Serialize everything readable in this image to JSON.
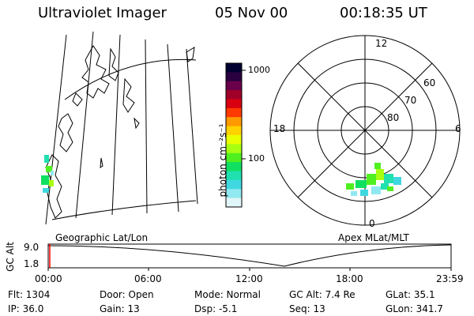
{
  "header": {
    "instrument": "Ultraviolet Imager",
    "date": "05 Nov 00",
    "time": "00:18:35 UT"
  },
  "colorbar": {
    "unit_label": "photon cm⁻²s⁻¹",
    "ticks": [
      "1000",
      "100"
    ],
    "colors": [
      "#000030",
      "#2a0040",
      "#6a004a",
      "#a00028",
      "#d80010",
      "#ff3a00",
      "#ff9a00",
      "#ffd200",
      "#e8ff00",
      "#a8ff10",
      "#50f020",
      "#10e060",
      "#20e0b0",
      "#40d8e0",
      "#90e8f0",
      "#e0f6f8"
    ]
  },
  "polar_plot": {
    "mlt_labels": [
      "12",
      "18",
      "6",
      "0"
    ],
    "lat_labels": [
      "60",
      "70",
      "80"
    ]
  },
  "map_panel": {
    "label": "Geographic Lat/Lon"
  },
  "apex_label": "Apex MLat/MLT",
  "timeline": {
    "axis_label": "GC Alt",
    "y_ticks": [
      "9.0",
      "1.8"
    ],
    "x_ticks": [
      "00:00",
      "06:00",
      "12:00",
      "18:00",
      "23:59"
    ]
  },
  "info": {
    "row1": [
      "Flt: 1304",
      "Door: Open",
      "Mode: Normal",
      "GC Alt: 7.4 Re",
      "GLat: 35.1"
    ],
    "row2": [
      "IP: 36.0",
      "Gain: 13",
      "Dsp: -5.1",
      "Seq: 13",
      "GLon: 341.7"
    ]
  }
}
